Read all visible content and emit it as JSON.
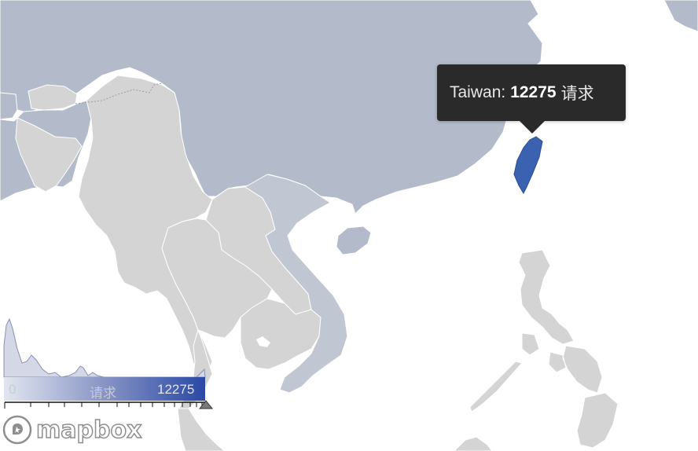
{
  "map": {
    "highlight_region": "Taiwan",
    "colors": {
      "land_china": "#b3bbca",
      "land_countries": "#d4d4d4",
      "land_vietnam": "#c0c6d2",
      "highlight": "#3a62b0",
      "water": "#ffffff",
      "border": "#ffffff"
    }
  },
  "tooltip": {
    "region": "Taiwan:",
    "value": "12275",
    "unit": "请求"
  },
  "legend": {
    "min_label": "0",
    "metric_label": "请求",
    "max_label": "12275",
    "gradient_start": "#e2e6f0",
    "gradient_end": "#2a49a6",
    "marker_fraction": 1.0
  },
  "attribution": {
    "logo_text": "mapbox",
    "logo_icon": "mapbox-logo-icon"
  }
}
